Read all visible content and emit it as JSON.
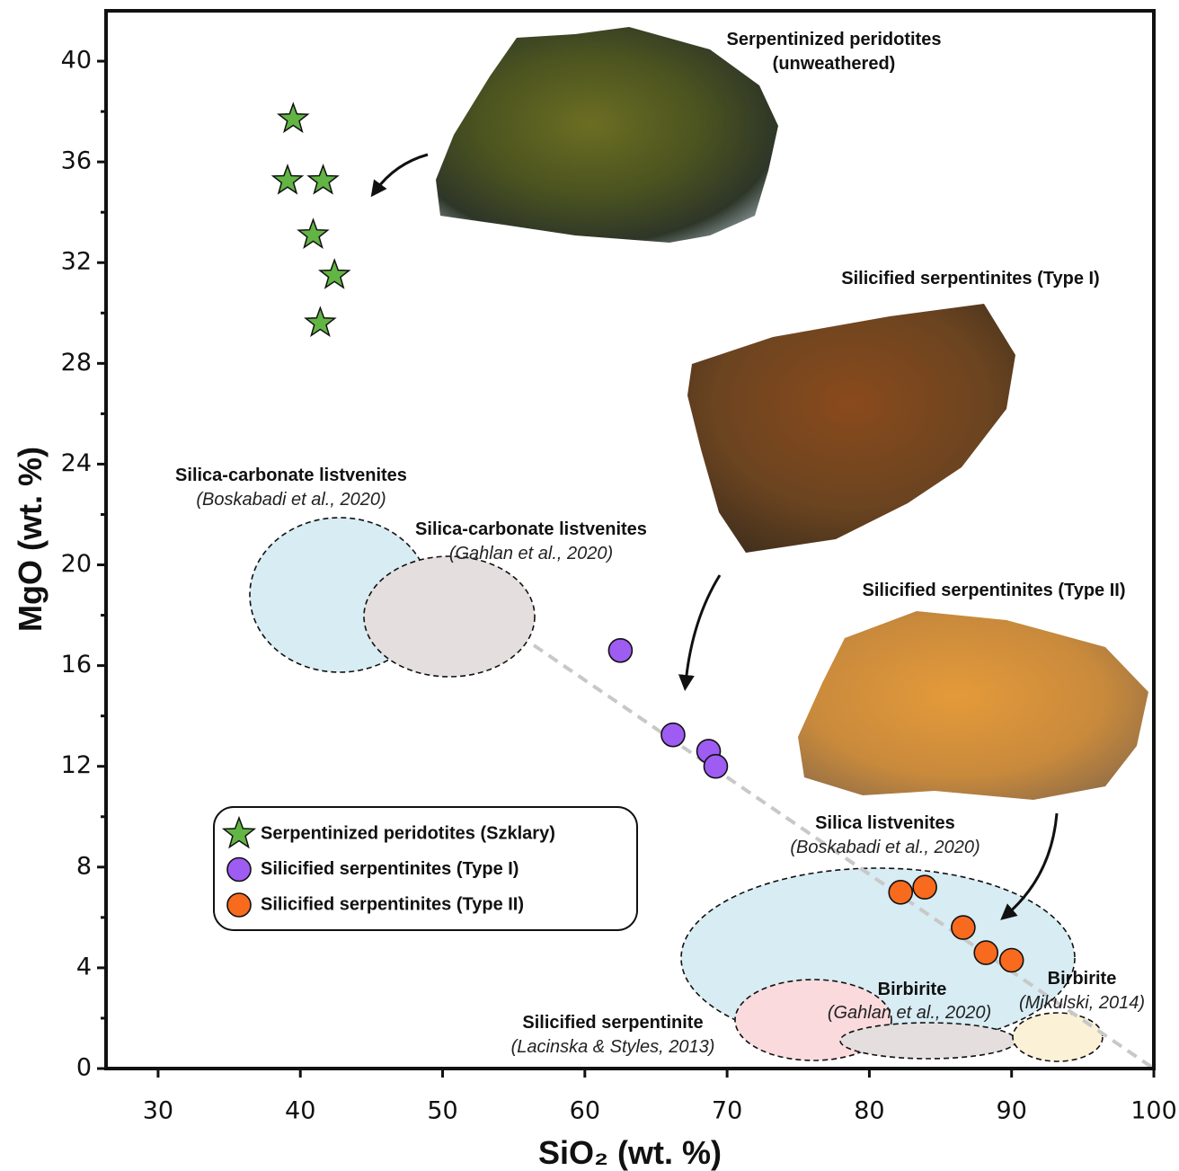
{
  "chart_data": {
    "type": "scatter",
    "xlabel": "SiO₂ (wt. %)",
    "ylabel": "MgO (wt. %)",
    "xlim": [
      26.34,
      100
    ],
    "ylim": [
      0,
      42
    ],
    "xticks": [
      30,
      40,
      50,
      60,
      70,
      80,
      90,
      100
    ],
    "yticks": [
      0,
      4,
      8,
      12,
      16,
      20,
      24,
      28,
      32,
      36,
      40
    ],
    "y_minor_ticks": [
      2,
      6,
      10,
      14,
      18,
      22,
      26,
      30,
      34,
      38
    ],
    "series": [
      {
        "name": "Serpentinized peridotites (Szklary)",
        "color": "#62b544",
        "marker": "star",
        "x": [
          39.5,
          39.1,
          41.6,
          40.9,
          42.4,
          41.4
        ],
        "values": [
          37.7,
          35.25,
          35.25,
          33.1,
          31.5,
          29.6
        ]
      },
      {
        "name": "Silicified serpentinites (Type I)",
        "color": "#9e5cf2",
        "marker": "circle",
        "x": [
          62.5,
          66.2,
          68.7,
          69.2
        ],
        "values": [
          16.6,
          13.25,
          12.6,
          12.0
        ]
      },
      {
        "name": "Silicified serpentinites (Type II)",
        "color": "#f86a1e",
        "marker": "circle",
        "x": [
          82.2,
          83.9,
          86.6,
          88.2,
          90.0
        ],
        "values": [
          7.0,
          7.2,
          5.6,
          4.6,
          4.3
        ]
      }
    ],
    "annotations": [
      "Serpentinized peridotites",
      "(unweathered)",
      "Silicified serpentinites (Type I)",
      "Silica-carbonate listvenites",
      "(Boskabadi et al., 2020)",
      "Silica-carbonate listvenites",
      "(Gahlan et al., 2020)",
      "Silicified serpentinites (Type II)",
      "Silica listvenites",
      "(Boskabadi et al., 2020)",
      "Birbirite",
      "(Gahlan et al., 2020)",
      "Birbirite",
      "(Mikulski, 2014)",
      "Silicified serpentinite",
      "(Lacinska & Styles, 2013)"
    ]
  }
}
